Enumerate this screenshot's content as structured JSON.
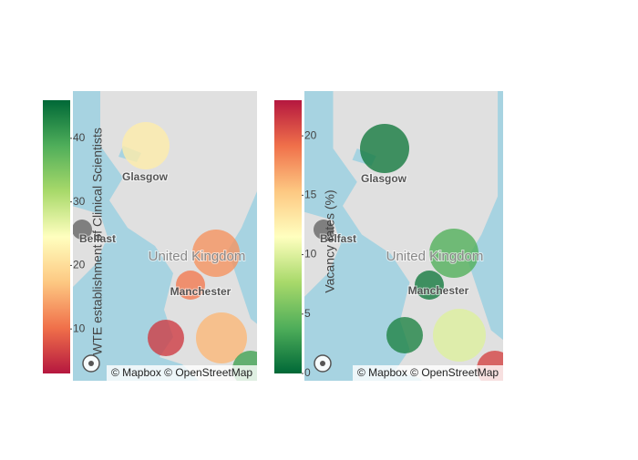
{
  "maps": [
    {
      "colorbar": {
        "title": "WTE establishment of Clinical Scientists",
        "cmin": 3,
        "cmax": 46,
        "ticks": [
          10,
          20,
          30,
          40
        ],
        "colorscale": [
          "#b5173f",
          "#f0704a",
          "#fdc882",
          "#ffffbf",
          "#a8d96a",
          "#4fae5a",
          "#006837"
        ]
      },
      "labels": [
        "Glasgow",
        "Belfast",
        "United Kingdom",
        "Manchester"
      ],
      "bubbles": {
        "values": [
          22,
          null,
          13,
          11,
          6,
          16,
          40
        ]
      },
      "attribution": "© Mapbox © OpenStreetMap"
    },
    {
      "colorbar": {
        "title": "Vacancy rates (%)",
        "cmin": 0,
        "cmax": 23,
        "ticks": [
          0,
          5,
          10,
          15,
          20
        ],
        "colorscale": [
          "#006837",
          "#4fae5a",
          "#a8d96a",
          "#ffffbf",
          "#fdc882",
          "#f0704a",
          "#b5173f"
        ]
      },
      "labels": [
        "Glasgow",
        "Belfast",
        "United Kingdom",
        "Manchester"
      ],
      "bubbles": {
        "values": [
          1,
          null,
          4,
          1,
          1.5,
          10,
          21
        ]
      },
      "attribution": "© Mapbox © OpenStreetMap"
    }
  ]
}
